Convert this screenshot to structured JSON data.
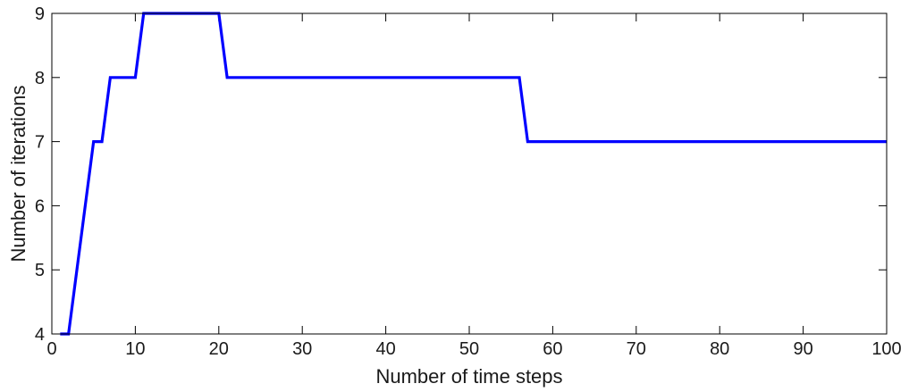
{
  "chart_data": {
    "type": "line",
    "title": "",
    "xlabel": "Number of time steps",
    "ylabel": "Number of iterations",
    "xlim": [
      0,
      100
    ],
    "ylim": [
      4,
      9
    ],
    "xticks": [
      0,
      10,
      20,
      30,
      40,
      50,
      60,
      70,
      80,
      90,
      100
    ],
    "yticks": [
      4,
      5,
      6,
      7,
      8,
      9
    ],
    "grid": false,
    "legend": "none",
    "series": [
      {
        "color": "#0000ff",
        "x": [
          1,
          2,
          5,
          6,
          7,
          10,
          11,
          20,
          21,
          56,
          57,
          100
        ],
        "y": [
          4,
          4,
          7,
          7,
          8,
          8,
          9,
          9,
          8,
          8,
          7,
          7
        ]
      }
    ]
  }
}
